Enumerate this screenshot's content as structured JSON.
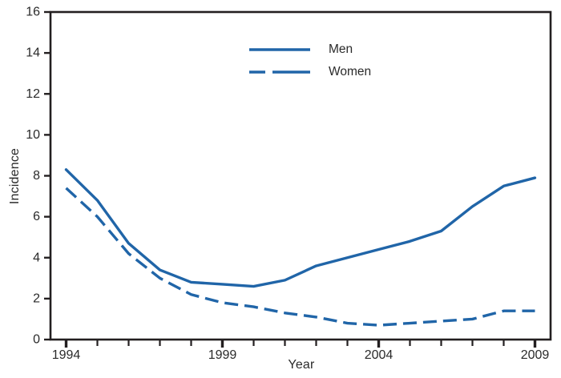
{
  "chart_data": {
    "type": "line",
    "title": "",
    "xlabel": "Year",
    "ylabel": "Incidence",
    "x": [
      1994,
      1995,
      1996,
      1997,
      1998,
      1999,
      2000,
      2001,
      2002,
      2003,
      2004,
      2005,
      2006,
      2007,
      2008,
      2009
    ],
    "series": [
      {
        "name": "Men",
        "style": "solid",
        "color": "#2065a8",
        "values": [
          8.3,
          6.8,
          4.7,
          3.4,
          2.8,
          2.7,
          2.6,
          2.9,
          3.6,
          4.0,
          4.4,
          4.8,
          5.3,
          6.5,
          7.5,
          7.9
        ]
      },
      {
        "name": "Women",
        "style": "dashed",
        "color": "#2065a8",
        "values": [
          7.4,
          6.0,
          4.2,
          3.0,
          2.2,
          1.8,
          1.6,
          1.3,
          1.1,
          0.8,
          0.7,
          0.8,
          0.9,
          1.0,
          1.4,
          1.4
        ]
      }
    ],
    "xlim": [
      1993.5,
      2009.5
    ],
    "ylim": [
      0,
      16
    ],
    "yticks": [
      0,
      2,
      4,
      6,
      8,
      10,
      12,
      14,
      16
    ],
    "xticks_labeled": [
      1994,
      1999,
      2004,
      2009
    ],
    "xticks_minor": [
      1994,
      1995,
      1996,
      1997,
      1998,
      1999,
      2000,
      2001,
      2002,
      2003,
      2004,
      2005,
      2006,
      2007,
      2008,
      2009
    ],
    "grid": false,
    "legend_position": "upper-center",
    "axis_color": "#231f20",
    "text_color": "#2a2a2a"
  }
}
